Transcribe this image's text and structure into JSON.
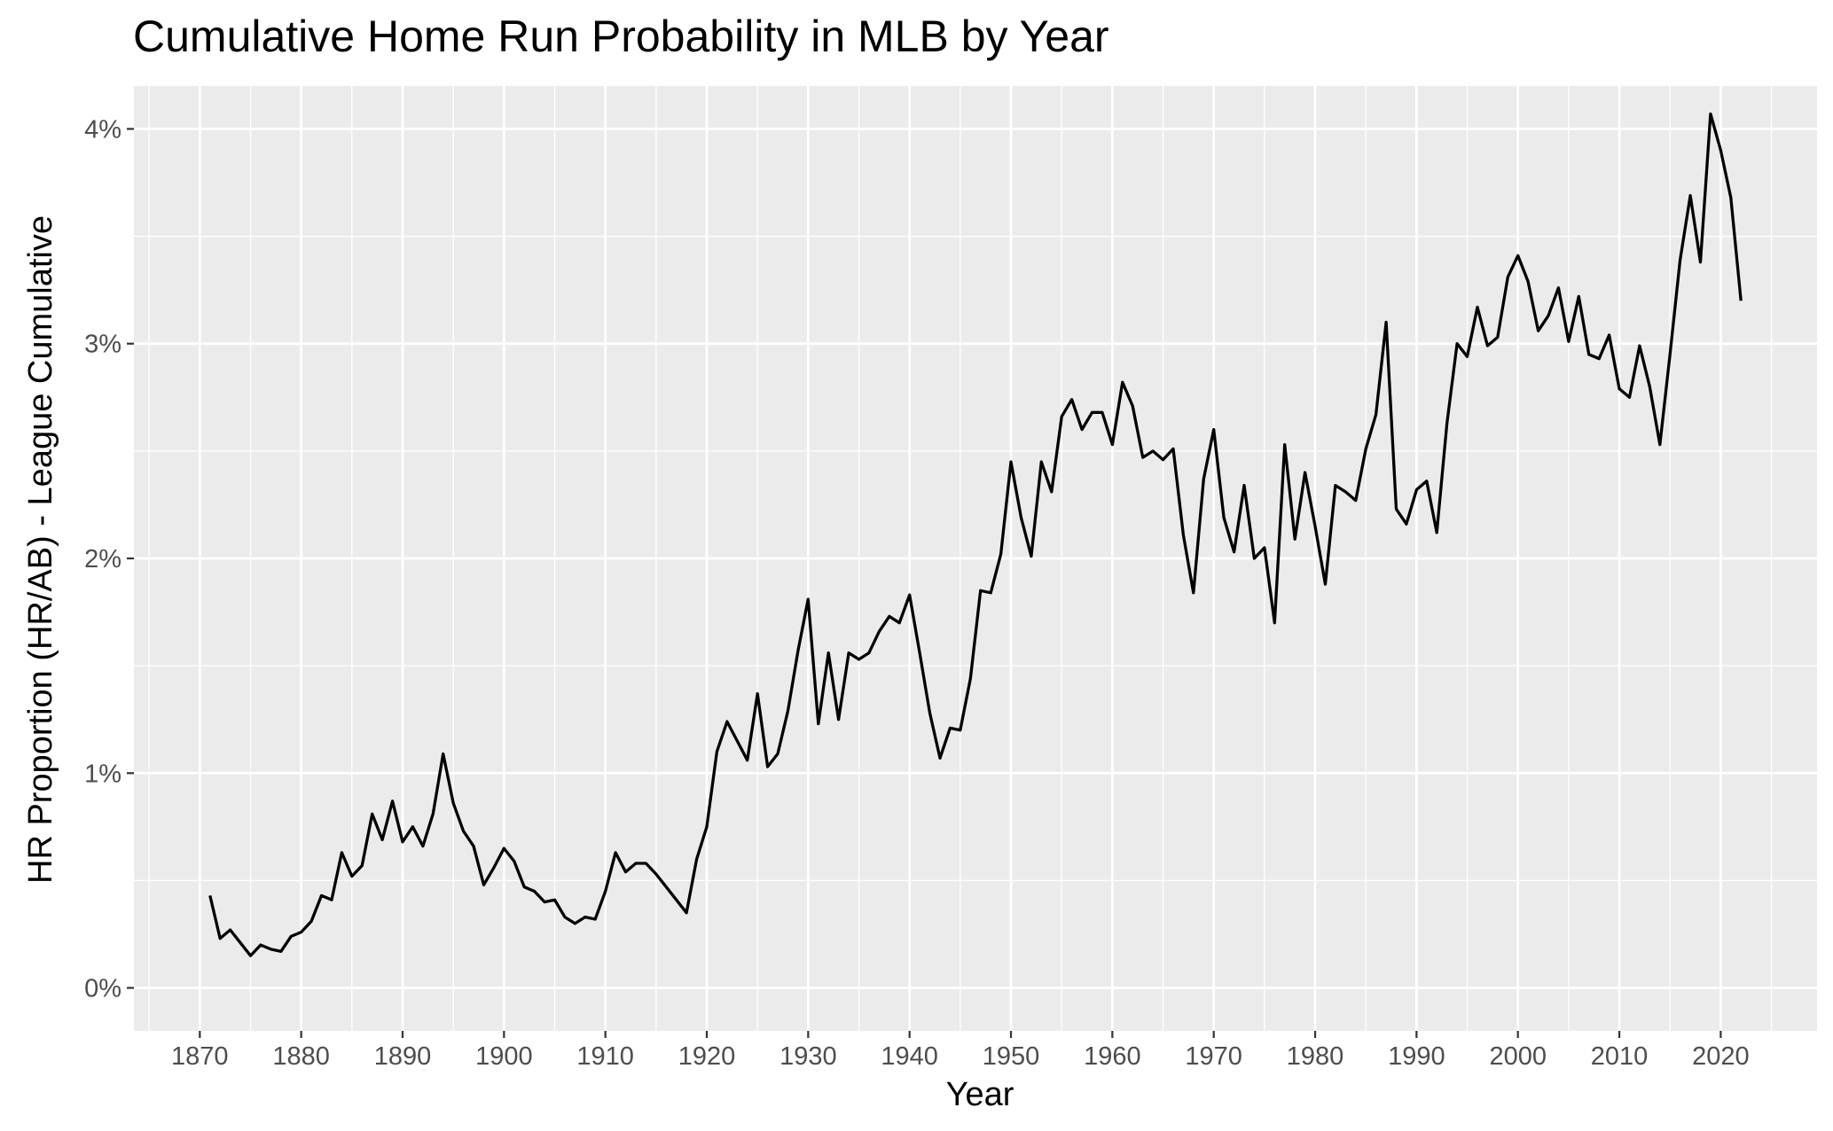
{
  "chart_data": {
    "type": "line",
    "title": "Cumulative Home Run Probability in MLB by Year",
    "xlabel": "Year",
    "ylabel": "HR Proportion (HR/AB) - League Cumulative",
    "xlim": [
      1863.5,
      2029.5
    ],
    "ylim": [
      -0.2,
      4.2
    ],
    "y_unit": "%",
    "x_ticks": [
      1870,
      1880,
      1890,
      1900,
      1910,
      1920,
      1930,
      1940,
      1950,
      1960,
      1970,
      1980,
      1990,
      2000,
      2010,
      2020
    ],
    "x_tick_labels": [
      "1870",
      "1880",
      "1890",
      "1900",
      "1910",
      "1920",
      "1930",
      "1940",
      "1950",
      "1960",
      "1970",
      "1980",
      "1990",
      "2000",
      "2010",
      "2020"
    ],
    "y_ticks": [
      0,
      1,
      2,
      3,
      4
    ],
    "y_tick_labels": [
      "0%",
      "1%",
      "2%",
      "3%",
      "4%"
    ],
    "grid": true,
    "legend": "none",
    "colors": {
      "panel": "#ebebeb",
      "grid": "#ffffff",
      "line": "#000000",
      "tick": "#333333"
    },
    "series": [
      {
        "x": [
          1871,
          1872,
          1873,
          1874,
          1875,
          1876,
          1877,
          1878,
          1879,
          1880,
          1881,
          1882,
          1883,
          1884,
          1885,
          1886,
          1887,
          1888,
          1889,
          1890,
          1891,
          1892,
          1893,
          1894,
          1895,
          1896,
          1897,
          1898,
          1899,
          1900,
          1901,
          1902,
          1903,
          1904,
          1905,
          1906,
          1907,
          1908,
          1909,
          1910,
          1911,
          1912,
          1913,
          1914,
          1915,
          1916,
          1917,
          1918,
          1919,
          1920,
          1921,
          1922,
          1923,
          1924,
          1925,
          1926,
          1927,
          1928,
          1929,
          1930,
          1931,
          1932,
          1933,
          1934,
          1935,
          1936,
          1937,
          1938,
          1939,
          1940,
          1941,
          1942,
          1943,
          1944,
          1945,
          1946,
          1947,
          1948,
          1949,
          1950,
          1951,
          1952,
          1953,
          1954,
          1955,
          1956,
          1957,
          1958,
          1959,
          1960,
          1961,
          1962,
          1963,
          1964,
          1965,
          1966,
          1967,
          1968,
          1969,
          1970,
          1971,
          1972,
          1973,
          1974,
          1975,
          1976,
          1977,
          1978,
          1979,
          1980,
          1981,
          1982,
          1983,
          1984,
          1985,
          1986,
          1987,
          1988,
          1989,
          1990,
          1991,
          1992,
          1993,
          1994,
          1995,
          1996,
          1997,
          1998,
          1999,
          2000,
          2001,
          2002,
          2003,
          2004,
          2005,
          2006,
          2007,
          2008,
          2009,
          2010,
          2011,
          2012,
          2013,
          2014,
          2015,
          2016,
          2017,
          2018,
          2019,
          2020,
          2021,
          2022
        ],
        "values": [
          0.43,
          0.23,
          0.27,
          0.21,
          0.15,
          0.2,
          0.18,
          0.17,
          0.24,
          0.26,
          0.31,
          0.43,
          0.41,
          0.63,
          0.52,
          0.57,
          0.81,
          0.69,
          0.87,
          0.68,
          0.75,
          0.66,
          0.81,
          1.09,
          0.86,
          0.73,
          0.66,
          0.48,
          0.56,
          0.65,
          0.59,
          0.47,
          0.45,
          0.4,
          0.41,
          0.33,
          0.3,
          0.33,
          0.32,
          0.45,
          0.63,
          0.54,
          0.58,
          0.58,
          0.53,
          0.47,
          0.41,
          0.35,
          0.6,
          0.75,
          1.1,
          1.24,
          1.15,
          1.06,
          1.37,
          1.03,
          1.09,
          1.29,
          1.57,
          1.81,
          1.23,
          1.56,
          1.25,
          1.56,
          1.53,
          1.56,
          1.66,
          1.73,
          1.7,
          1.83,
          1.56,
          1.28,
          1.07,
          1.21,
          1.2,
          1.44,
          1.85,
          1.84,
          2.02,
          2.45,
          2.19,
          2.01,
          2.45,
          2.31,
          2.66,
          2.74,
          2.6,
          2.68,
          2.68,
          2.53,
          2.82,
          2.71,
          2.47,
          2.5,
          2.46,
          2.51,
          2.11,
          1.84,
          2.37,
          2.6,
          2.19,
          2.03,
          2.34,
          2.0,
          2.05,
          1.7,
          2.53,
          2.09,
          2.4,
          2.15,
          1.88,
          2.34,
          2.31,
          2.27,
          2.51,
          2.67,
          3.1,
          2.23,
          2.16,
          2.32,
          2.36,
          2.12,
          2.63,
          3.0,
          2.94,
          3.17,
          2.99,
          3.03,
          3.31,
          3.41,
          3.29,
          3.06,
          3.13,
          3.26,
          3.01,
          3.22,
          2.95,
          2.93,
          3.04,
          2.79,
          2.75,
          2.99,
          2.8,
          2.53,
          2.95,
          3.39,
          3.69,
          3.38,
          4.07,
          3.9,
          3.68,
          3.2
        ]
      }
    ]
  }
}
